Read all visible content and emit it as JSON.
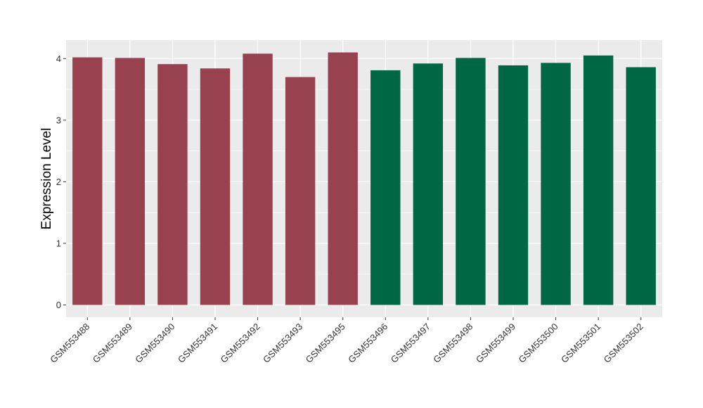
{
  "chart_data": {
    "type": "bar",
    "title": "",
    "xlabel": "",
    "ylabel": "Expression Level",
    "ylim": [
      -0.2,
      4.3
    ],
    "yticks": [
      0,
      1,
      2,
      3,
      4
    ],
    "ytick_labels": [
      "0",
      "1",
      "2",
      "3",
      "4"
    ],
    "grid": true,
    "legend": "none",
    "panel_background": "#ebebeb",
    "grid_color": "#ffffff",
    "categories": [
      "GSM553488",
      "GSM553489",
      "GSM553490",
      "GSM553491",
      "GSM553492",
      "GSM553493",
      "GSM553495",
      "GSM553496",
      "GSM553497",
      "GSM553498",
      "GSM553499",
      "GSM553500",
      "GSM553501",
      "GSM553502"
    ],
    "values": [
      4.02,
      4.01,
      3.91,
      3.84,
      4.08,
      3.7,
      4.1,
      3.81,
      3.92,
      4.01,
      3.89,
      3.93,
      4.05,
      3.86
    ],
    "bar_colors": [
      "#99424f",
      "#99424f",
      "#99424f",
      "#99424f",
      "#99424f",
      "#99424f",
      "#99424f",
      "#006744",
      "#006744",
      "#006744",
      "#006744",
      "#006744",
      "#006744",
      "#006744"
    ]
  }
}
